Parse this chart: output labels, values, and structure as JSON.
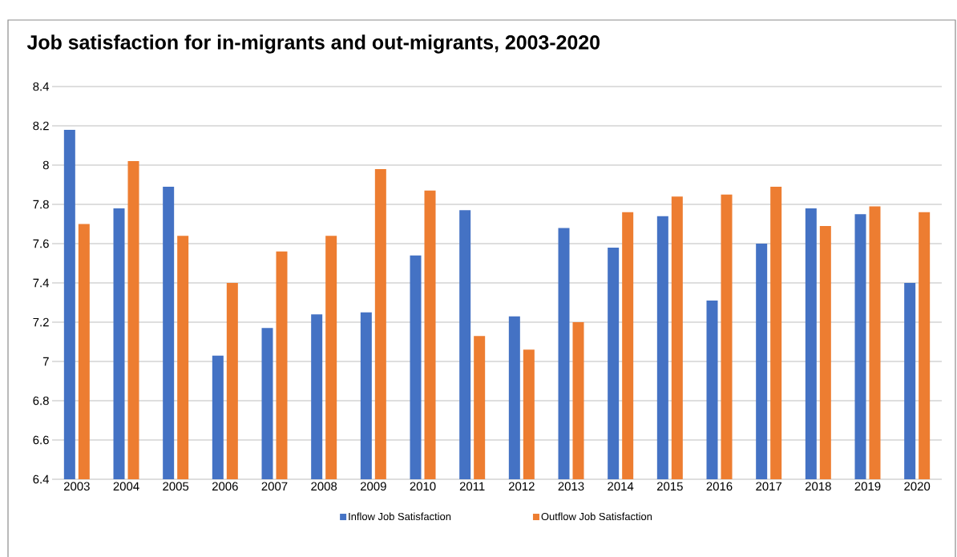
{
  "chart_data": {
    "type": "bar",
    "title": "Job satisfaction for in-migrants and out-migrants, 2003-2020",
    "categories": [
      "2003",
      "2004",
      "2005",
      "2006",
      "2007",
      "2008",
      "2009",
      "2010",
      "2011",
      "2012",
      "2013",
      "2014",
      "2015",
      "2016",
      "2017",
      "2018",
      "2019",
      "2020"
    ],
    "series": [
      {
        "name": "Inflow Job Satisfaction",
        "color": "#4472c4",
        "values": [
          8.18,
          7.78,
          7.89,
          7.03,
          7.17,
          7.24,
          7.25,
          7.54,
          7.77,
          7.23,
          7.68,
          7.58,
          7.74,
          7.31,
          7.6,
          7.78,
          7.75,
          7.4
        ]
      },
      {
        "name": "Outflow Job Satisfaction",
        "color": "#ed7d31",
        "values": [
          7.7,
          8.02,
          7.64,
          7.4,
          7.56,
          7.64,
          7.98,
          7.87,
          7.13,
          7.06,
          7.2,
          7.76,
          7.84,
          7.85,
          7.89,
          7.69,
          7.79,
          7.76
        ]
      }
    ],
    "ylim": [
      6.4,
      8.4
    ],
    "yticks": [
      6.4,
      6.6,
      6.8,
      7,
      7.2,
      7.4,
      7.6,
      7.8,
      8,
      8.2,
      8.4
    ],
    "grid": "y",
    "legend": "bottom"
  }
}
